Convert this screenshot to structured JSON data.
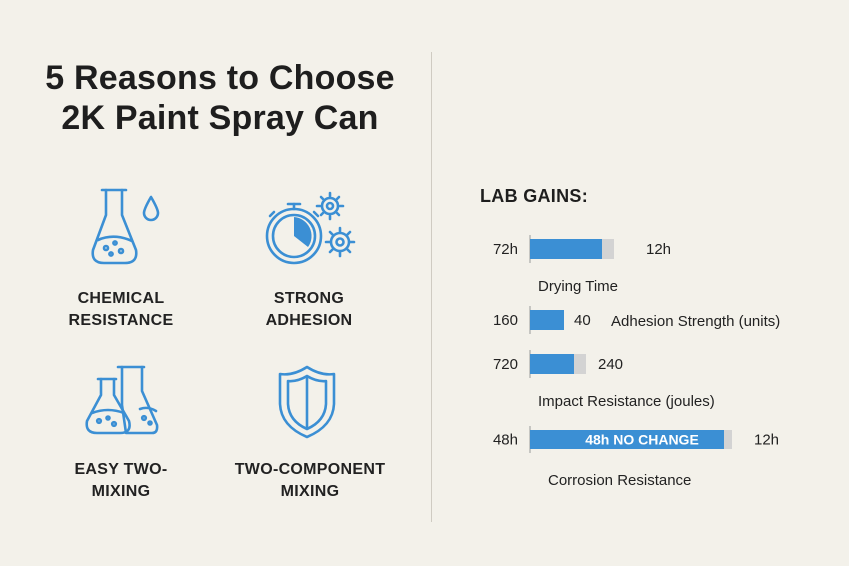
{
  "title_line1": "5 Reasons to Choose",
  "title_line2": "2K Paint Spray Can",
  "features": [
    {
      "line1": "CHEMICAL",
      "line2": "RESISTANCE",
      "icon": "flask-drop-icon"
    },
    {
      "line1": "STRONG",
      "line2": "ADHESION",
      "icon": "stopwatch-gears-icon"
    },
    {
      "line1": "EASY TWO-",
      "line2": "MIXING",
      "icon": "two-flasks-icon"
    },
    {
      "line1": "TWO-COMPONENT",
      "line2": "MIXING",
      "icon": "shield-icon"
    }
  ],
  "colors": {
    "accent": "#3b8fd4",
    "icon": "#3b8fd4",
    "bar_gray": "#d3d3d3",
    "text": "#222222"
  },
  "chart_data": {
    "type": "bar",
    "title": "LAB GAINS:",
    "categories": [
      "Drying Time",
      "Adhesion Strength (units)",
      "Impact Resistance (joules)",
      "Corrosion Resistance"
    ],
    "series": [
      {
        "values_label": [
          "72h",
          "160",
          "720",
          "48h"
        ],
        "values": [
          72,
          160,
          720,
          48
        ]
      },
      {
        "values_label": [
          "12h",
          "40",
          "240",
          "12h"
        ],
        "values": [
          12,
          40,
          240,
          12
        ]
      }
    ],
    "annotations": [
      "48h NO CHANGE"
    ]
  }
}
